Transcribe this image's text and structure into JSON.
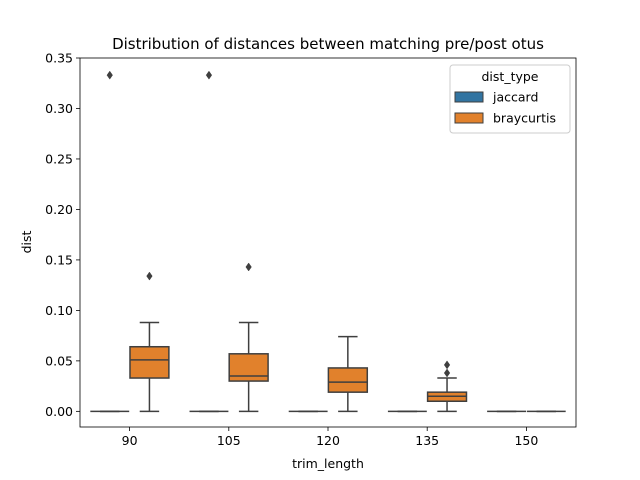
{
  "chart_data": {
    "type": "box",
    "title": "Distribution of distances between matching pre/post otus",
    "xlabel": "trim_length",
    "ylabel": "dist",
    "ylim": [
      -0.0155,
      0.35
    ],
    "yticks": [
      0.0,
      0.05,
      0.1,
      0.15,
      0.2,
      0.25,
      0.3,
      0.35
    ],
    "yticklabels": [
      "0.00",
      "0.05",
      "0.10",
      "0.15",
      "0.20",
      "0.25",
      "0.30",
      "0.35"
    ],
    "categories": [
      "90",
      "105",
      "120",
      "135",
      "150"
    ],
    "grid": false,
    "legend": {
      "title": "dist_type",
      "position": "top-right"
    },
    "series": [
      {
        "name": "jaccard",
        "color": "#3274a1",
        "boxes": [
          {
            "q1": 0,
            "median": 0,
            "q3": 0,
            "whisker_low": 0,
            "whisker_high": 0,
            "outliers": [
              0.333
            ]
          },
          {
            "q1": 0,
            "median": 0,
            "q3": 0,
            "whisker_low": 0,
            "whisker_high": 0,
            "outliers": [
              0.333
            ]
          },
          {
            "q1": 0,
            "median": 0,
            "q3": 0,
            "whisker_low": 0,
            "whisker_high": 0,
            "outliers": []
          },
          {
            "q1": 0,
            "median": 0,
            "q3": 0,
            "whisker_low": 0,
            "whisker_high": 0,
            "outliers": []
          },
          {
            "q1": 0,
            "median": 0,
            "q3": 0,
            "whisker_low": 0,
            "whisker_high": 0,
            "outliers": []
          }
        ]
      },
      {
        "name": "braycurtis",
        "color": "#e1812c",
        "boxes": [
          {
            "q1": 0.033,
            "median": 0.051,
            "q3": 0.064,
            "whisker_low": 0,
            "whisker_high": 0.088,
            "outliers": [
              0.134
            ]
          },
          {
            "q1": 0.03,
            "median": 0.035,
            "q3": 0.057,
            "whisker_low": 0,
            "whisker_high": 0.088,
            "outliers": [
              0.143
            ]
          },
          {
            "q1": 0.019,
            "median": 0.029,
            "q3": 0.043,
            "whisker_low": 0,
            "whisker_high": 0.074,
            "outliers": []
          },
          {
            "q1": 0.01,
            "median": 0.015,
            "q3": 0.019,
            "whisker_low": 0,
            "whisker_high": 0.033,
            "outliers": [
              0.038,
              0.046
            ]
          },
          {
            "q1": 0,
            "median": 0,
            "q3": 0,
            "whisker_low": 0,
            "whisker_high": 0,
            "outliers": []
          }
        ]
      }
    ]
  }
}
